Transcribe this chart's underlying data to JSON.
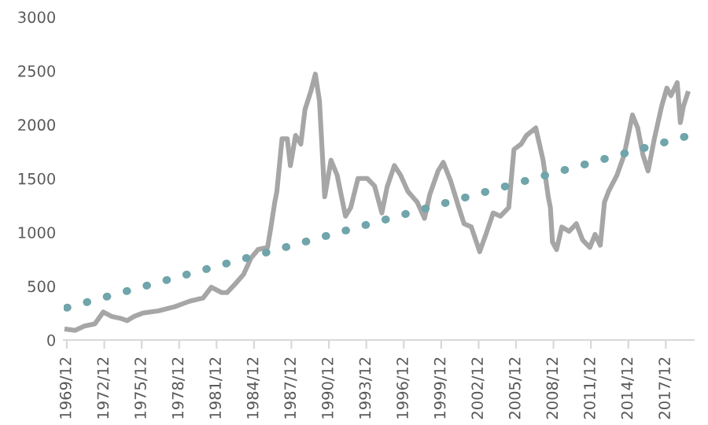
{
  "chart_data": {
    "type": "line",
    "xlim": [
      "1969-09",
      "2020-03"
    ],
    "ylim": [
      0,
      3000
    ],
    "yticks": [
      0,
      500,
      1000,
      1500,
      2000,
      2500,
      3000
    ],
    "xticks": [
      {
        "value": "1969-12",
        "label": "1969/12"
      },
      {
        "value": "1972-12",
        "label": "1972/12"
      },
      {
        "value": "1975-12",
        "label": "1975/12"
      },
      {
        "value": "1978-12",
        "label": "1978/12"
      },
      {
        "value": "1981-12",
        "label": "1981/12"
      },
      {
        "value": "1984-12",
        "label": "1984/12"
      },
      {
        "value": "1987-12",
        "label": "1987/12"
      },
      {
        "value": "1990-12",
        "label": "1990/12"
      },
      {
        "value": "1993-12",
        "label": "1993/12"
      },
      {
        "value": "1996-12",
        "label": "1996/12"
      },
      {
        "value": "1999-12",
        "label": "1999/12"
      },
      {
        "value": "2002-12",
        "label": "2002/12"
      },
      {
        "value": "2005-12",
        "label": "2005/12"
      },
      {
        "value": "2008-12",
        "label": "2008/12"
      },
      {
        "value": "2011-12",
        "label": "2011/12"
      },
      {
        "value": "2014-12",
        "label": "2014/12"
      },
      {
        "value": "2017-12",
        "label": "2017/12"
      }
    ],
    "grid": false,
    "legend": false,
    "series": [
      {
        "color": "#a6a6a6",
        "line_style": "solid",
        "x": [
          "1969-12",
          "1970-08",
          "1971-05",
          "1972-03",
          "1972-11",
          "1973-07",
          "1974-04",
          "1974-10",
          "1975-05",
          "1976-01",
          "1977-04",
          "1978-08",
          "1979-10",
          "1980-11",
          "1981-07",
          "1982-05",
          "1982-10",
          "1983-05",
          "1984-02",
          "1984-09",
          "1985-04",
          "1986-01",
          "1986-04",
          "1986-08",
          "1986-10",
          "1987-03",
          "1987-08",
          "1987-11",
          "1988-04",
          "1988-09",
          "1989-01",
          "1989-07",
          "1989-11",
          "1990-03",
          "1990-08",
          "1991-02",
          "1991-08",
          "1992-04",
          "1992-09",
          "1993-04",
          "1994-01",
          "1994-08",
          "1995-03",
          "1995-08",
          "1996-03",
          "1996-09",
          "1997-04",
          "1998-01",
          "1998-08",
          "1999-01",
          "1999-09",
          "2000-02",
          "2000-09",
          "2001-05",
          "2001-10",
          "2002-05",
          "2003-01",
          "2003-07",
          "2004-02",
          "2004-09",
          "2005-05",
          "2005-10",
          "2006-05",
          "2006-10",
          "2007-07",
          "2008-02",
          "2008-07",
          "2008-09",
          "2008-11",
          "2009-03",
          "2009-08",
          "2010-03",
          "2010-10",
          "2011-04",
          "2011-11",
          "2012-04",
          "2012-09",
          "2013-01",
          "2013-05",
          "2014-01",
          "2014-08",
          "2015-04",
          "2015-09",
          "2016-02",
          "2016-07",
          "2017-01",
          "2017-08",
          "2018-01",
          "2018-05",
          "2018-11",
          "2019-02",
          "2019-05",
          "2019-09"
        ],
        "values": [
          100,
          90,
          130,
          150,
          260,
          220,
          200,
          180,
          220,
          250,
          270,
          310,
          360,
          390,
          490,
          440,
          440,
          510,
          610,
          760,
          840,
          860,
          1030,
          1280,
          1380,
          1870,
          1870,
          1620,
          1900,
          1820,
          2140,
          2320,
          2470,
          2220,
          1330,
          1670,
          1530,
          1150,
          1230,
          1500,
          1500,
          1430,
          1180,
          1420,
          1620,
          1530,
          1380,
          1280,
          1130,
          1350,
          1570,
          1650,
          1480,
          1230,
          1080,
          1050,
          820,
          980,
          1180,
          1150,
          1230,
          1770,
          1820,
          1900,
          1970,
          1670,
          1330,
          1230,
          910,
          840,
          1050,
          1010,
          1080,
          930,
          860,
          980,
          880,
          1280,
          1380,
          1530,
          1720,
          2090,
          1970,
          1720,
          1570,
          1870,
          2170,
          2340,
          2270,
          2390,
          2020,
          2170,
          2290
        ]
      },
      {
        "color": "#6fa5ab",
        "line_style": "dotted",
        "x": [
          "1969-12",
          "2019-07"
        ],
        "values": [
          300,
          1890
        ]
      }
    ]
  }
}
